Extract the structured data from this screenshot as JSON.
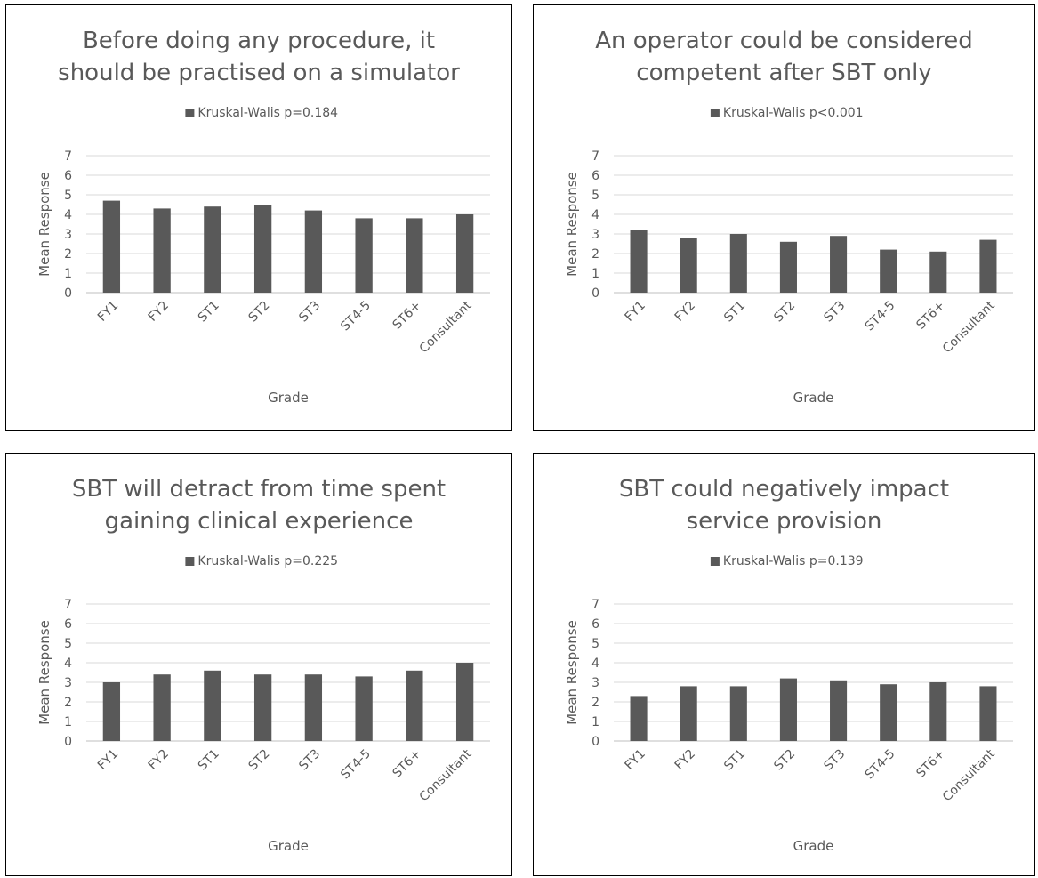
{
  "chart_data": [
    {
      "type": "bar",
      "title_lines": [
        "Before doing any procedure, it",
        "should be practised on a simulator"
      ],
      "legend": "Kruskal-Walis p=0.184",
      "xlabel": "Grade",
      "ylabel": "Mean Response",
      "ylim": [
        0,
        7
      ],
      "yticks": [
        "0",
        "1",
        "2",
        "3",
        "4",
        "5",
        "6",
        "7"
      ],
      "categories": [
        "FY1",
        "FY2",
        "ST1",
        "ST2",
        "ST3",
        "ST4-5",
        "ST6+",
        "Consultant"
      ],
      "values": [
        4.7,
        4.3,
        4.4,
        4.5,
        4.2,
        3.8,
        3.8,
        4.0
      ],
      "grid": true,
      "legend_position": "top"
    },
    {
      "type": "bar",
      "title_lines": [
        "An operator could be considered",
        "competent after SBT only"
      ],
      "legend": "Kruskal-Walis p<0.001",
      "xlabel": "Grade",
      "ylabel": "Mean Response",
      "ylim": [
        0,
        7
      ],
      "yticks": [
        "0",
        "1",
        "2",
        "3",
        "4",
        "5",
        "6",
        "7"
      ],
      "categories": [
        "FY1",
        "FY2",
        "ST1",
        "ST2",
        "ST3",
        "ST4-5",
        "ST6+",
        "Consultant"
      ],
      "values": [
        3.2,
        2.8,
        3.0,
        2.6,
        2.9,
        2.2,
        2.1,
        2.7
      ],
      "grid": true,
      "legend_position": "top"
    },
    {
      "type": "bar",
      "title_lines": [
        "SBT will detract from time spent",
        "gaining clinical experience"
      ],
      "legend": "Kruskal-Walis p=0.225",
      "xlabel": "Grade",
      "ylabel": "Mean Response",
      "ylim": [
        0,
        7
      ],
      "yticks": [
        "0",
        "1",
        "2",
        "3",
        "4",
        "5",
        "6",
        "7"
      ],
      "categories": [
        "FY1",
        "FY2",
        "ST1",
        "ST2",
        "ST3",
        "ST4-5",
        "ST6+",
        "Consultant"
      ],
      "values": [
        3.0,
        3.4,
        3.6,
        3.4,
        3.4,
        3.3,
        3.6,
        4.0
      ],
      "grid": true,
      "legend_position": "top"
    },
    {
      "type": "bar",
      "title_lines": [
        "SBT could negatively impact",
        "service provision"
      ],
      "legend": "Kruskal-Walis p=0.139",
      "xlabel": "Grade",
      "ylabel": "Mean Response",
      "ylim": [
        0,
        7
      ],
      "yticks": [
        "0",
        "1",
        "2",
        "3",
        "4",
        "5",
        "6",
        "7"
      ],
      "categories": [
        "FY1",
        "FY2",
        "ST1",
        "ST2",
        "ST3",
        "ST4-5",
        "ST6+",
        "Consultant"
      ],
      "values": [
        2.3,
        2.8,
        2.8,
        3.2,
        3.1,
        2.9,
        3.0,
        2.8
      ],
      "grid": true,
      "legend_position": "top"
    }
  ],
  "colors": {
    "bar": "#595959",
    "text": "#595959",
    "grid": "#d9d9d9"
  }
}
